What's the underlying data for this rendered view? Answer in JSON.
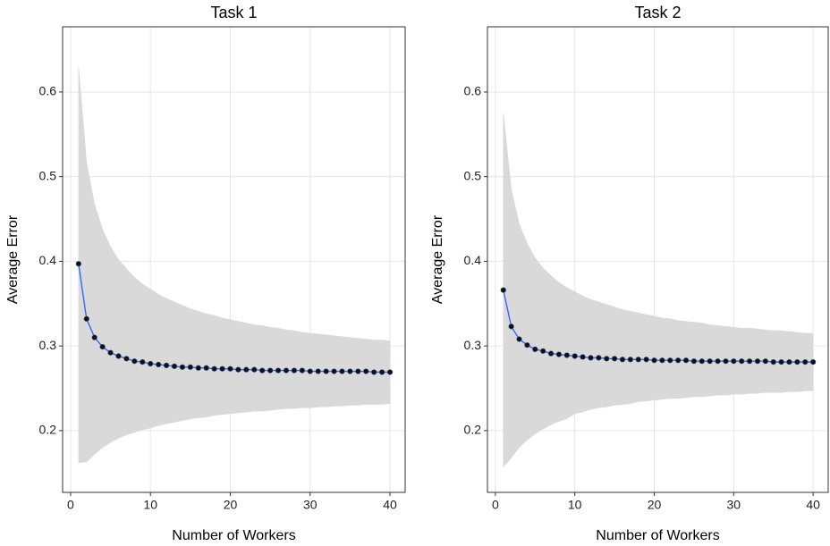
{
  "chart_data": [
    {
      "type": "line",
      "title": "Task 1",
      "xlabel": "Number of Workers",
      "ylabel": "Average Error",
      "x": [
        1,
        2,
        3,
        4,
        5,
        6,
        7,
        8,
        9,
        10,
        11,
        12,
        13,
        14,
        15,
        16,
        17,
        18,
        19,
        20,
        21,
        22,
        23,
        24,
        25,
        26,
        27,
        28,
        29,
        30,
        31,
        32,
        33,
        34,
        35,
        36,
        37,
        38,
        39,
        40
      ],
      "values": [
        0.397,
        0.332,
        0.31,
        0.299,
        0.292,
        0.288,
        0.285,
        0.282,
        0.281,
        0.279,
        0.278,
        0.277,
        0.276,
        0.275,
        0.275,
        0.274,
        0.274,
        0.273,
        0.273,
        0.273,
        0.272,
        0.272,
        0.272,
        0.271,
        0.271,
        0.271,
        0.271,
        0.271,
        0.271,
        0.27,
        0.27,
        0.27,
        0.27,
        0.27,
        0.27,
        0.27,
        0.27,
        0.269,
        0.269,
        0.269
      ],
      "upper": [
        0.63,
        0.517,
        0.467,
        0.438,
        0.417,
        0.402,
        0.391,
        0.381,
        0.373,
        0.367,
        0.361,
        0.356,
        0.352,
        0.348,
        0.344,
        0.341,
        0.338,
        0.336,
        0.333,
        0.331,
        0.329,
        0.327,
        0.325,
        0.324,
        0.322,
        0.321,
        0.319,
        0.318,
        0.316,
        0.315,
        0.314,
        0.313,
        0.312,
        0.311,
        0.31,
        0.309,
        0.308,
        0.307,
        0.307,
        0.306
      ],
      "lower": [
        0.162,
        0.163,
        0.172,
        0.18,
        0.186,
        0.191,
        0.195,
        0.198,
        0.201,
        0.203,
        0.206,
        0.208,
        0.21,
        0.212,
        0.214,
        0.215,
        0.216,
        0.218,
        0.219,
        0.22,
        0.221,
        0.222,
        0.223,
        0.223,
        0.224,
        0.225,
        0.226,
        0.226,
        0.227,
        0.227,
        0.228,
        0.228,
        0.229,
        0.229,
        0.23,
        0.23,
        0.231,
        0.231,
        0.231,
        0.232
      ],
      "color": "#3366ff",
      "point_color": "#111111",
      "band_color": "#d9d9d9",
      "xlim": [
        -1,
        41.9
      ],
      "ylim": [
        0.127,
        0.677
      ],
      "xticks": [
        0,
        10,
        20,
        30,
        40
      ],
      "yticks": [
        0.2,
        0.3,
        0.4,
        0.5,
        0.6
      ],
      "grid": true
    },
    {
      "type": "line",
      "title": "Task 2",
      "xlabel": "Number of Workers",
      "ylabel": "Average Error",
      "x": [
        1,
        2,
        3,
        4,
        5,
        6,
        7,
        8,
        9,
        10,
        11,
        12,
        13,
        14,
        15,
        16,
        17,
        18,
        19,
        20,
        21,
        22,
        23,
        24,
        25,
        26,
        27,
        28,
        29,
        30,
        31,
        32,
        33,
        34,
        35,
        36,
        37,
        38,
        39,
        40
      ],
      "values": [
        0.366,
        0.323,
        0.308,
        0.301,
        0.296,
        0.294,
        0.291,
        0.29,
        0.289,
        0.288,
        0.287,
        0.286,
        0.286,
        0.285,
        0.285,
        0.284,
        0.284,
        0.284,
        0.284,
        0.283,
        0.283,
        0.283,
        0.283,
        0.283,
        0.282,
        0.282,
        0.282,
        0.282,
        0.282,
        0.282,
        0.282,
        0.282,
        0.282,
        0.282,
        0.281,
        0.281,
        0.281,
        0.281,
        0.281,
        0.281
      ],
      "upper": [
        0.575,
        0.485,
        0.444,
        0.421,
        0.404,
        0.392,
        0.383,
        0.375,
        0.369,
        0.364,
        0.359,
        0.355,
        0.352,
        0.349,
        0.346,
        0.343,
        0.341,
        0.339,
        0.337,
        0.335,
        0.333,
        0.332,
        0.33,
        0.329,
        0.328,
        0.327,
        0.325,
        0.324,
        0.323,
        0.322,
        0.321,
        0.321,
        0.32,
        0.319,
        0.318,
        0.318,
        0.317,
        0.316,
        0.315,
        0.315
      ],
      "lower": [
        0.157,
        0.168,
        0.18,
        0.189,
        0.196,
        0.202,
        0.207,
        0.211,
        0.214,
        0.22,
        0.222,
        0.225,
        0.227,
        0.228,
        0.23,
        0.231,
        0.232,
        0.234,
        0.235,
        0.236,
        0.237,
        0.238,
        0.238,
        0.239,
        0.24,
        0.24,
        0.241,
        0.242,
        0.242,
        0.243,
        0.243,
        0.244,
        0.244,
        0.245,
        0.245,
        0.245,
        0.246,
        0.246,
        0.247,
        0.247
      ],
      "color": "#3366ff",
      "point_color": "#111111",
      "band_color": "#d9d9d9",
      "xlim": [
        -1,
        41.9
      ],
      "ylim": [
        0.127,
        0.677
      ],
      "xticks": [
        0,
        10,
        20,
        30,
        40
      ],
      "yticks": [
        0.2,
        0.3,
        0.4,
        0.5,
        0.6
      ],
      "grid": true
    }
  ]
}
